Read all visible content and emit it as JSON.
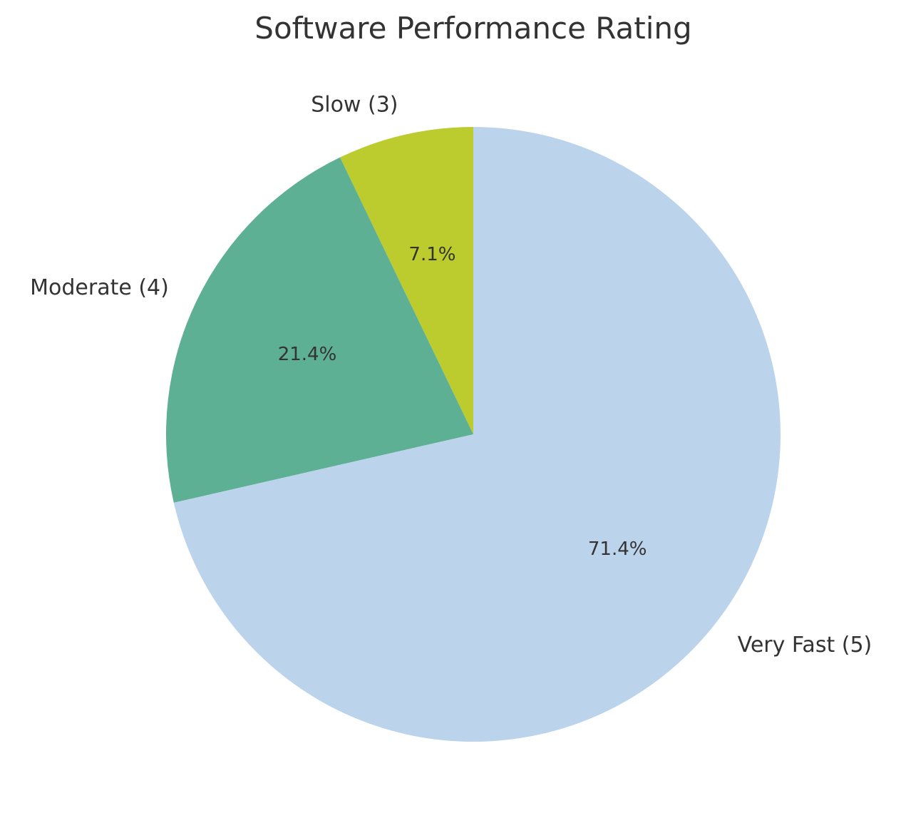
{
  "chart_data": {
    "type": "pie",
    "title": "Software Performance Rating",
    "start_angle_deg": 90,
    "direction": "counterclockwise",
    "slices": [
      {
        "label": "Slow (3)",
        "value": 1,
        "percent_label": "7.1%",
        "color": "#bccb2e"
      },
      {
        "label": "Moderate (4)",
        "value": 3,
        "percent_label": "21.4%",
        "color": "#5db093"
      },
      {
        "label": "Very Fast (5)",
        "value": 10,
        "percent_label": "71.4%",
        "color": "#bcd3ec"
      }
    ]
  }
}
